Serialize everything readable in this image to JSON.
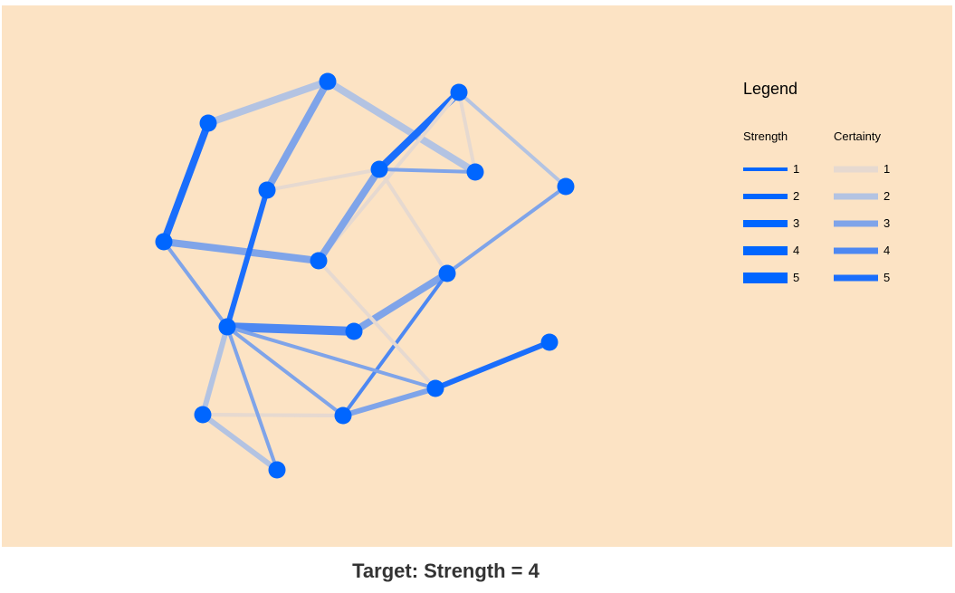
{
  "colors": {
    "panel_bg": "#FCE3C4",
    "node": "#0066FF",
    "certainty": [
      "#E6D9D0",
      "#B3C3E2",
      "#7FA4E9",
      "#4D88F2",
      "#1A6EFC"
    ]
  },
  "legend": {
    "title": "Legend",
    "strength_header": "Strength",
    "certainty_header": "Certainty",
    "levels": [
      "1",
      "2",
      "3",
      "4",
      "5"
    ]
  },
  "target": {
    "label": "Target: Strength = 4"
  },
  "graph": {
    "nodes": [
      "n1",
      "n2",
      "n3",
      "n4",
      "n5",
      "n6",
      "n7",
      "n8",
      "n9",
      "n10",
      "n11",
      "n12",
      "n13",
      "n14",
      "n15",
      "n16"
    ],
    "edges": [
      {
        "source": "n1",
        "target": "n2",
        "strength": 3,
        "certainty": 2
      },
      {
        "source": "n2",
        "target": "n4",
        "strength": 3,
        "certainty": 3
      },
      {
        "source": "n2",
        "target": "n6",
        "strength": 3,
        "certainty": 2
      },
      {
        "source": "n1",
        "target": "n7",
        "strength": 3,
        "certainty": 5
      },
      {
        "source": "n3",
        "target": "n5",
        "strength": 3,
        "certainty": 5
      },
      {
        "source": "n3",
        "target": "n6",
        "strength": 1,
        "certainty": 1
      },
      {
        "source": "n3",
        "target": "n8",
        "strength": 1,
        "certainty": 1
      },
      {
        "source": "n3",
        "target": "n9",
        "strength": 1,
        "certainty": 2
      },
      {
        "source": "n4",
        "target": "n5",
        "strength": 1,
        "certainty": 1
      },
      {
        "source": "n5",
        "target": "n6",
        "strength": 1,
        "certainty": 3
      },
      {
        "source": "n5",
        "target": "n8",
        "strength": 3,
        "certainty": 3
      },
      {
        "source": "n5",
        "target": "n10",
        "strength": 1,
        "certainty": 1
      },
      {
        "source": "n7",
        "target": "n8",
        "strength": 3,
        "certainty": 3
      },
      {
        "source": "n7",
        "target": "n11",
        "strength": 1,
        "certainty": 3
      },
      {
        "source": "n4",
        "target": "n11",
        "strength": 2,
        "certainty": 5
      },
      {
        "source": "n11",
        "target": "n12",
        "strength": 4,
        "certainty": 4
      },
      {
        "source": "n10",
        "target": "n12",
        "strength": 3,
        "certainty": 3
      },
      {
        "source": "n9",
        "target": "n10",
        "strength": 1,
        "certainty": 3
      },
      {
        "source": "n10",
        "target": "n15",
        "strength": 1,
        "certainty": 4
      },
      {
        "source": "n11",
        "target": "n15",
        "strength": 1,
        "certainty": 3
      },
      {
        "source": "n11",
        "target": "n14",
        "strength": 1,
        "certainty": 3
      },
      {
        "source": "n8",
        "target": "n14",
        "strength": 1,
        "certainty": 1
      },
      {
        "source": "n15",
        "target": "n14",
        "strength": 2,
        "certainty": 3
      },
      {
        "source": "n14",
        "target": "n13",
        "strength": 2,
        "certainty": 5
      },
      {
        "source": "n16",
        "target": "n15",
        "strength": 1,
        "certainty": 1
      },
      {
        "source": "n16",
        "target": "n11",
        "strength": 2,
        "certainty": 2
      },
      {
        "source": "n16",
        "target": "n15",
        "strength": 1,
        "certainty": 1
      }
    ]
  }
}
